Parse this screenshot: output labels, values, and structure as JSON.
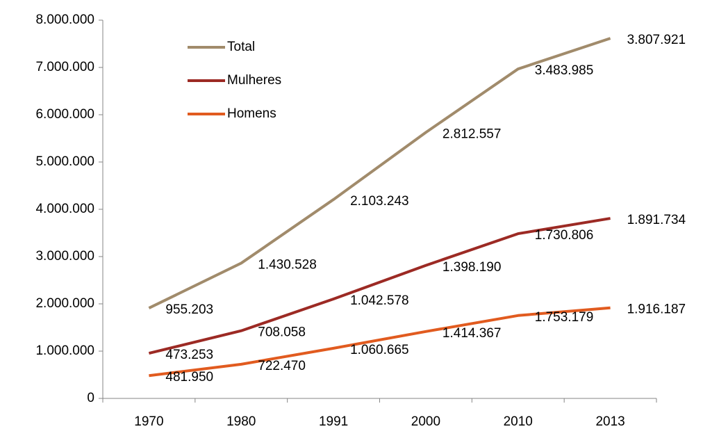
{
  "chart_data": {
    "type": "stacked-line",
    "categories": [
      "1970",
      "1980",
      "1991",
      "2000",
      "2010",
      "2013"
    ],
    "series": [
      {
        "name": "Homens",
        "color": "#e15b1f",
        "values": [
          481950,
          722470,
          1060665,
          1414367,
          1753179,
          1916187
        ],
        "value_labels": [
          "481.950",
          "722.470",
          "1.060.665",
          "1.414.367",
          "1.753.179",
          "1.916.187"
        ]
      },
      {
        "name": "Mulheres",
        "color": "#9c2a24",
        "values": [
          473253,
          708058,
          1042578,
          1398190,
          1730806,
          1891734
        ],
        "value_labels": [
          "473.253",
          "708.058",
          "1.042.578",
          "1.398.190",
          "1.730.806",
          "1.891.734"
        ]
      },
      {
        "name": "Total",
        "color": "#a18b6b",
        "values": [
          955203,
          1430528,
          2103243,
          2812557,
          3483985,
          3807921
        ],
        "value_labels": [
          "955.203",
          "1.430.528",
          "2.103.243",
          "2.812.557",
          "3.483.985",
          "3.807.921"
        ]
      }
    ],
    "ylim": [
      0,
      8000000
    ],
    "yticks": [
      0,
      {
        "value": 1000000,
        "label": "1.000.000"
      },
      {
        "value": 2000000,
        "label": "2.000.000"
      },
      {
        "value": 3000000,
        "label": "3.000.000"
      },
      {
        "value": 4000000,
        "label": "4.000.000"
      },
      {
        "value": 5000000,
        "label": "5.000.000"
      },
      {
        "value": 6000000,
        "label": "6.000.000"
      },
      {
        "value": 7000000,
        "label": "7.000.000"
      },
      {
        "value": 8000000,
        "label": "8.000.000"
      }
    ],
    "grid": false,
    "legend": "top-left"
  }
}
